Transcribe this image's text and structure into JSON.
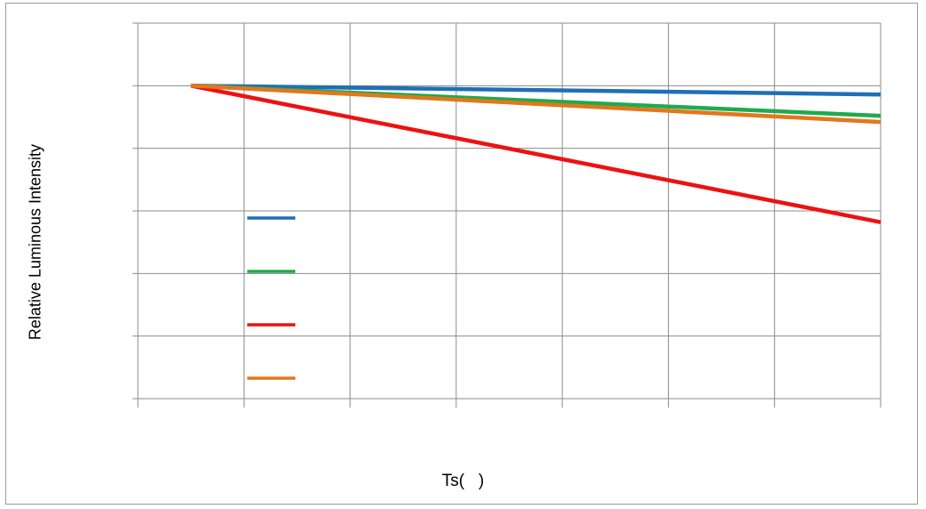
{
  "chart_data": {
    "type": "line",
    "title": "",
    "xlabel": "Ts(   )",
    "ylabel": "Relative Luminous Intensity",
    "x_ticks": 8,
    "y_ticks": 7,
    "xlim": [
      0,
      7
    ],
    "ylim": [
      0,
      6
    ],
    "grid": true,
    "legend": "left, inside plot, swatches only",
    "series": [
      {
        "color": "#1f6fb5",
        "x": [
          0.5,
          7
        ],
        "y": [
          5.0,
          4.86
        ]
      },
      {
        "color": "#1faa4f",
        "x": [
          0.5,
          7
        ],
        "y": [
          5.0,
          4.52
        ]
      },
      {
        "color": "#ee1111",
        "x": [
          0.5,
          7
        ],
        "y": [
          5.0,
          2.82
        ]
      },
      {
        "color": "#e2771c",
        "x": [
          0.5,
          7
        ],
        "y": [
          5.0,
          4.42
        ]
      }
    ]
  }
}
